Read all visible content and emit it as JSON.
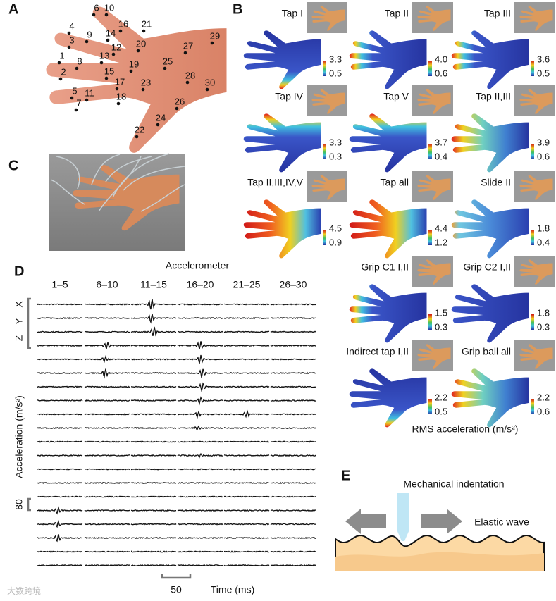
{
  "panel_a": {
    "label": "A",
    "points": [
      "1",
      "2",
      "3",
      "4",
      "5",
      "6",
      "7",
      "8",
      "9",
      "10",
      "11",
      "12",
      "13",
      "14",
      "15",
      "16",
      "17",
      "18",
      "19",
      "20",
      "21",
      "22",
      "23",
      "24",
      "25",
      "26",
      "27",
      "28",
      "29",
      "30"
    ]
  },
  "panel_b": {
    "label": "B",
    "caption": "RMS acceleration (m/s²)",
    "maps": [
      {
        "title": "Tap I",
        "max": "3.3",
        "min": "0.5"
      },
      {
        "title": "Tap II",
        "max": "4.0",
        "min": "0.6"
      },
      {
        "title": "Tap III",
        "max": "3.6",
        "min": "0.5"
      },
      {
        "title": "Tap IV",
        "max": "3.3",
        "min": "0.3"
      },
      {
        "title": "Tap V",
        "max": "3.7",
        "min": "0.4"
      },
      {
        "title": "Tap II,III",
        "max": "3.9",
        "min": "0.6"
      },
      {
        "title": "Tap II,III,IV,V",
        "max": "4.5",
        "min": "0.9"
      },
      {
        "title": "Tap all",
        "max": "4.4",
        "min": "1.2"
      },
      {
        "title": "Slide II",
        "max": "1.8",
        "min": "0.4"
      },
      {
        "title": "Grip C1 I,II",
        "max": "1.5",
        "min": "0.3"
      },
      {
        "title": "Grip C2 I,II",
        "max": "1.8",
        "min": "0.3"
      },
      {
        "title": "Indirect tap I,II",
        "max": "2.2",
        "min": "0.5"
      },
      {
        "title": "Grip ball all",
        "max": "2.2",
        "min": "0.6"
      }
    ]
  },
  "panel_c": {
    "label": "C"
  },
  "panel_d": {
    "label": "D",
    "title": "Accelerometer",
    "groups": [
      "1–5",
      "6–10",
      "11–15",
      "16–20",
      "21–25",
      "26–30"
    ],
    "axes": [
      "X",
      "Y",
      "Z"
    ],
    "y_label": "Acceleration (m/s²)",
    "amplitude_scale": "80",
    "time_scale": "50",
    "x_label": "Time (ms)"
  },
  "panel_e": {
    "label": "E",
    "indenter": "Mechanical indentation",
    "wave": "Elastic wave"
  },
  "watermark": "大数跨境"
}
